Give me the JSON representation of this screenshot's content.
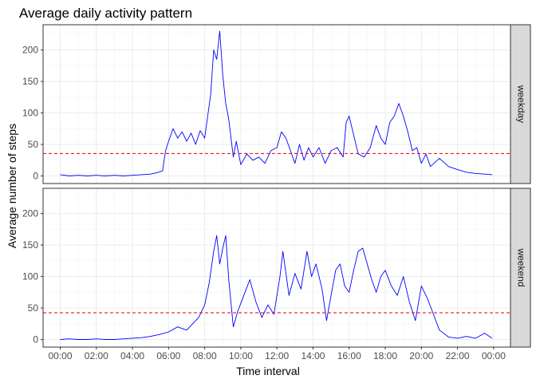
{
  "chart_data": {
    "type": "line",
    "title": "Average daily activity pattern",
    "xlabel": "Time interval",
    "ylabel": "Average number of steps",
    "xlim": [
      "00:00",
      "23:55"
    ],
    "x_ticks": [
      "00:00",
      "02:00",
      "04:00",
      "06:00",
      "08:00",
      "10:00",
      "12:00",
      "14:00",
      "16:00",
      "18:00",
      "20:00",
      "22:00",
      "00:00"
    ],
    "ylim": [
      0,
      240
    ],
    "y_ticks": [
      0,
      50,
      100,
      150,
      200
    ],
    "grid": true,
    "facet_labels_position": "right",
    "line_color": "#0000ff",
    "mean_line_color": "#dd0000",
    "panels": [
      {
        "label": "weekday",
        "mean": 35.6,
        "series": [
          {
            "time": "00:00",
            "steps": 2
          },
          {
            "time": "00:30",
            "steps": 0
          },
          {
            "time": "01:00",
            "steps": 1
          },
          {
            "time": "01:30",
            "steps": 0
          },
          {
            "time": "02:00",
            "steps": 1
          },
          {
            "time": "02:30",
            "steps": 0
          },
          {
            "time": "03:00",
            "steps": 1
          },
          {
            "time": "03:30",
            "steps": 0
          },
          {
            "time": "04:00",
            "steps": 1
          },
          {
            "time": "04:30",
            "steps": 2
          },
          {
            "time": "05:00",
            "steps": 3
          },
          {
            "time": "05:20",
            "steps": 5
          },
          {
            "time": "05:40",
            "steps": 8
          },
          {
            "time": "05:50",
            "steps": 40
          },
          {
            "time": "06:00",
            "steps": 55
          },
          {
            "time": "06:15",
            "steps": 75
          },
          {
            "time": "06:30",
            "steps": 60
          },
          {
            "time": "06:45",
            "steps": 70
          },
          {
            "time": "07:00",
            "steps": 55
          },
          {
            "time": "07:15",
            "steps": 68
          },
          {
            "time": "07:30",
            "steps": 50
          },
          {
            "time": "07:45",
            "steps": 72
          },
          {
            "time": "08:00",
            "steps": 60
          },
          {
            "time": "08:10",
            "steps": 95
          },
          {
            "time": "08:20",
            "steps": 130
          },
          {
            "time": "08:30",
            "steps": 200
          },
          {
            "time": "08:40",
            "steps": 185
          },
          {
            "time": "08:50",
            "steps": 230
          },
          {
            "time": "09:00",
            "steps": 160
          },
          {
            "time": "09:10",
            "steps": 115
          },
          {
            "time": "09:20",
            "steps": 90
          },
          {
            "time": "09:35",
            "steps": 30
          },
          {
            "time": "09:45",
            "steps": 55
          },
          {
            "time": "10:00",
            "steps": 18
          },
          {
            "time": "10:20",
            "steps": 35
          },
          {
            "time": "10:40",
            "steps": 25
          },
          {
            "time": "11:00",
            "steps": 30
          },
          {
            "time": "11:20",
            "steps": 20
          },
          {
            "time": "11:40",
            "steps": 40
          },
          {
            "time": "12:00",
            "steps": 45
          },
          {
            "time": "12:15",
            "steps": 70
          },
          {
            "time": "12:30",
            "steps": 60
          },
          {
            "time": "12:45",
            "steps": 40
          },
          {
            "time": "13:00",
            "steps": 20
          },
          {
            "time": "13:15",
            "steps": 50
          },
          {
            "time": "13:30",
            "steps": 25
          },
          {
            "time": "13:45",
            "steps": 45
          },
          {
            "time": "14:00",
            "steps": 30
          },
          {
            "time": "14:20",
            "steps": 45
          },
          {
            "time": "14:40",
            "steps": 20
          },
          {
            "time": "15:00",
            "steps": 40
          },
          {
            "time": "15:20",
            "steps": 45
          },
          {
            "time": "15:40",
            "steps": 30
          },
          {
            "time": "15:50",
            "steps": 85
          },
          {
            "time": "16:00",
            "steps": 95
          },
          {
            "time": "16:10",
            "steps": 75
          },
          {
            "time": "16:30",
            "steps": 35
          },
          {
            "time": "16:50",
            "steps": 30
          },
          {
            "time": "17:10",
            "steps": 45
          },
          {
            "time": "17:30",
            "steps": 80
          },
          {
            "time": "17:45",
            "steps": 60
          },
          {
            "time": "18:00",
            "steps": 50
          },
          {
            "time": "18:15",
            "steps": 85
          },
          {
            "time": "18:30",
            "steps": 95
          },
          {
            "time": "18:45",
            "steps": 115
          },
          {
            "time": "19:00",
            "steps": 95
          },
          {
            "time": "19:15",
            "steps": 70
          },
          {
            "time": "19:30",
            "steps": 40
          },
          {
            "time": "19:45",
            "steps": 45
          },
          {
            "time": "20:00",
            "steps": 20
          },
          {
            "time": "20:15",
            "steps": 35
          },
          {
            "time": "20:30",
            "steps": 15
          },
          {
            "time": "21:00",
            "steps": 28
          },
          {
            "time": "21:30",
            "steps": 15
          },
          {
            "time": "22:00",
            "steps": 10
          },
          {
            "time": "22:30",
            "steps": 6
          },
          {
            "time": "23:00",
            "steps": 4
          },
          {
            "time": "23:30",
            "steps": 3
          },
          {
            "time": "23:55",
            "steps": 2
          }
        ]
      },
      {
        "label": "weekend",
        "mean": 42.4,
        "series": [
          {
            "time": "00:00",
            "steps": 0
          },
          {
            "time": "00:30",
            "steps": 1
          },
          {
            "time": "01:00",
            "steps": 0
          },
          {
            "time": "01:30",
            "steps": 0
          },
          {
            "time": "02:00",
            "steps": 1
          },
          {
            "time": "02:30",
            "steps": 0
          },
          {
            "time": "03:00",
            "steps": 0
          },
          {
            "time": "03:30",
            "steps": 1
          },
          {
            "time": "04:00",
            "steps": 2
          },
          {
            "time": "04:30",
            "steps": 3
          },
          {
            "time": "05:00",
            "steps": 5
          },
          {
            "time": "05:30",
            "steps": 8
          },
          {
            "time": "06:00",
            "steps": 12
          },
          {
            "time": "06:30",
            "steps": 20
          },
          {
            "time": "07:00",
            "steps": 15
          },
          {
            "time": "07:20",
            "steps": 25
          },
          {
            "time": "07:40",
            "steps": 35
          },
          {
            "time": "08:00",
            "steps": 55
          },
          {
            "time": "08:15",
            "steps": 90
          },
          {
            "time": "08:30",
            "steps": 140
          },
          {
            "time": "08:40",
            "steps": 165
          },
          {
            "time": "08:50",
            "steps": 120
          },
          {
            "time": "09:00",
            "steps": 145
          },
          {
            "time": "09:10",
            "steps": 165
          },
          {
            "time": "09:20",
            "steps": 95
          },
          {
            "time": "09:35",
            "steps": 20
          },
          {
            "time": "09:50",
            "steps": 45
          },
          {
            "time": "10:10",
            "steps": 70
          },
          {
            "time": "10:30",
            "steps": 95
          },
          {
            "time": "10:50",
            "steps": 60
          },
          {
            "time": "11:10",
            "steps": 35
          },
          {
            "time": "11:30",
            "steps": 55
          },
          {
            "time": "11:50",
            "steps": 40
          },
          {
            "time": "12:10",
            "steps": 100
          },
          {
            "time": "12:20",
            "steps": 140
          },
          {
            "time": "12:40",
            "steps": 70
          },
          {
            "time": "13:00",
            "steps": 105
          },
          {
            "time": "13:20",
            "steps": 80
          },
          {
            "time": "13:40",
            "steps": 140
          },
          {
            "time": "13:55",
            "steps": 100
          },
          {
            "time": "14:10",
            "steps": 120
          },
          {
            "time": "14:30",
            "steps": 80
          },
          {
            "time": "14:45",
            "steps": 30
          },
          {
            "time": "15:00",
            "steps": 70
          },
          {
            "time": "15:15",
            "steps": 110
          },
          {
            "time": "15:30",
            "steps": 120
          },
          {
            "time": "15:45",
            "steps": 85
          },
          {
            "time": "16:00",
            "steps": 75
          },
          {
            "time": "16:15",
            "steps": 110
          },
          {
            "time": "16:30",
            "steps": 140
          },
          {
            "time": "16:45",
            "steps": 145
          },
          {
            "time": "17:00",
            "steps": 120
          },
          {
            "time": "17:15",
            "steps": 95
          },
          {
            "time": "17:30",
            "steps": 75
          },
          {
            "time": "17:45",
            "steps": 100
          },
          {
            "time": "18:00",
            "steps": 110
          },
          {
            "time": "18:20",
            "steps": 85
          },
          {
            "time": "18:40",
            "steps": 70
          },
          {
            "time": "19:00",
            "steps": 100
          },
          {
            "time": "19:20",
            "steps": 60
          },
          {
            "time": "19:40",
            "steps": 30
          },
          {
            "time": "20:00",
            "steps": 85
          },
          {
            "time": "20:20",
            "steps": 65
          },
          {
            "time": "20:40",
            "steps": 40
          },
          {
            "time": "21:00",
            "steps": 15
          },
          {
            "time": "21:30",
            "steps": 4
          },
          {
            "time": "22:00",
            "steps": 2
          },
          {
            "time": "22:30",
            "steps": 5
          },
          {
            "time": "23:00",
            "steps": 2
          },
          {
            "time": "23:30",
            "steps": 10
          },
          {
            "time": "23:55",
            "steps": 2
          }
        ]
      }
    ]
  }
}
